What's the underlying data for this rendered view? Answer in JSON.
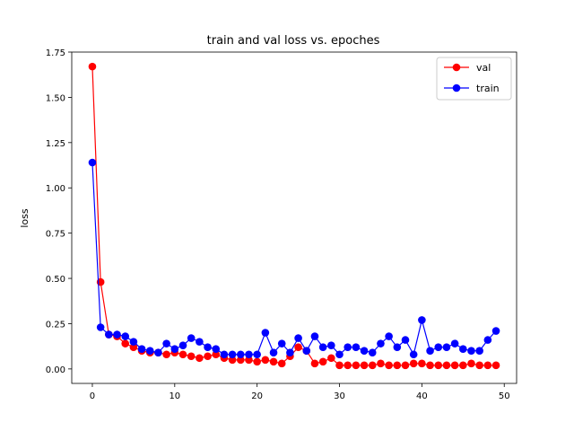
{
  "chart_data": {
    "type": "line",
    "title": "train and val loss vs. epoches",
    "xlabel": "",
    "ylabel": "loss",
    "xlim": [
      -2.5,
      51.5
    ],
    "ylim": [
      -0.08,
      1.75
    ],
    "xticks": [
      0,
      10,
      20,
      30,
      40,
      50
    ],
    "yticks": [
      0.0,
      0.25,
      0.5,
      0.75,
      1.0,
      1.25,
      1.5,
      1.75
    ],
    "ytick_labels": [
      "0.00",
      "0.25",
      "0.50",
      "0.75",
      "1.00",
      "1.25",
      "1.50",
      "1.75"
    ],
    "legend_position": "top-right",
    "grid": false,
    "x": [
      0,
      1,
      2,
      3,
      4,
      5,
      6,
      7,
      8,
      9,
      10,
      11,
      12,
      13,
      14,
      15,
      16,
      17,
      18,
      19,
      20,
      21,
      22,
      23,
      24,
      25,
      26,
      27,
      28,
      29,
      30,
      31,
      32,
      33,
      34,
      35,
      36,
      37,
      38,
      39,
      40,
      41,
      42,
      43,
      44,
      45,
      46,
      47,
      48,
      49
    ],
    "series": [
      {
        "name": "val",
        "color": "#ff0000",
        "values": [
          1.67,
          0.48,
          0.19,
          0.18,
          0.14,
          0.12,
          0.1,
          0.09,
          0.09,
          0.08,
          0.09,
          0.08,
          0.07,
          0.06,
          0.07,
          0.08,
          0.06,
          0.05,
          0.05,
          0.05,
          0.04,
          0.05,
          0.04,
          0.03,
          0.07,
          0.12,
          0.1,
          0.03,
          0.04,
          0.06,
          0.02,
          0.02,
          0.02,
          0.02,
          0.02,
          0.03,
          0.02,
          0.02,
          0.02,
          0.03,
          0.03,
          0.02,
          0.02,
          0.02,
          0.02,
          0.02,
          0.03,
          0.02,
          0.02,
          0.02
        ]
      },
      {
        "name": "train",
        "color": "#0000ff",
        "values": [
          1.14,
          0.23,
          0.19,
          0.19,
          0.18,
          0.15,
          0.11,
          0.1,
          0.09,
          0.14,
          0.11,
          0.13,
          0.17,
          0.15,
          0.12,
          0.11,
          0.08,
          0.08,
          0.08,
          0.08,
          0.08,
          0.2,
          0.09,
          0.14,
          0.09,
          0.17,
          0.1,
          0.18,
          0.12,
          0.13,
          0.08,
          0.12,
          0.12,
          0.1,
          0.09,
          0.14,
          0.18,
          0.12,
          0.16,
          0.08,
          0.27,
          0.1,
          0.12,
          0.12,
          0.14,
          0.11,
          0.1,
          0.1,
          0.16,
          0.21
        ]
      }
    ]
  }
}
